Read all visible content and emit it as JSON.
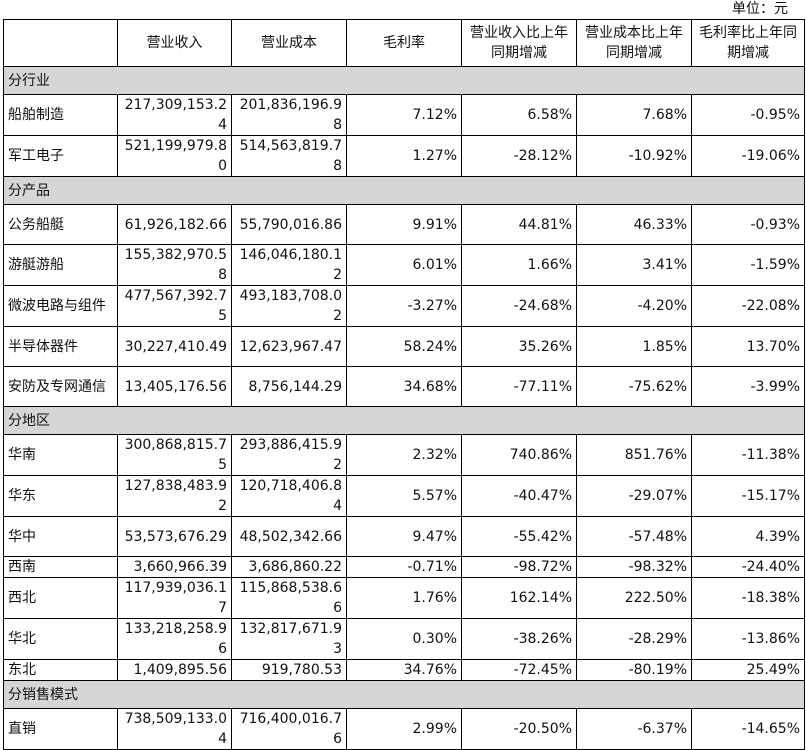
{
  "unit_label": "单位：元",
  "headers": [
    "",
    "营业收入",
    "营业成本",
    "毛利率",
    "营业收入比上年同期增减",
    "营业成本比上年同期增减",
    "毛利率比上年同期增减"
  ],
  "sections": [
    {
      "title": "分行业",
      "rows": [
        [
          "船舶制造",
          "217,309,153.24",
          "201,836,196.98",
          "7.12%",
          "6.58%",
          "7.68%",
          "-0.95%"
        ],
        [
          "军工电子",
          "521,199,979.80",
          "514,563,819.78",
          "1.27%",
          "-28.12%",
          "-10.92%",
          "-19.06%"
        ]
      ]
    },
    {
      "title": "分产品",
      "rows": [
        [
          "公务船艇",
          "61,926,182.66",
          "55,790,016.86",
          "9.91%",
          "44.81%",
          "46.33%",
          "-0.93%"
        ],
        [
          "游艇游船",
          "155,382,970.58",
          "146,046,180.12",
          "6.01%",
          "1.66%",
          "3.41%",
          "-1.59%"
        ],
        [
          "微波电路与组件",
          "477,567,392.75",
          "493,183,708.02",
          "-3.27%",
          "-24.68%",
          "-4.20%",
          "-22.08%"
        ],
        [
          "半导体器件",
          "30,227,410.49",
          "12,623,967.47",
          "58.24%",
          "35.26%",
          "1.85%",
          "13.70%"
        ],
        [
          "安防及专网通信",
          "13,405,176.56",
          "8,756,144.29",
          "34.68%",
          "-77.11%",
          "-75.62%",
          "-3.99%"
        ]
      ]
    },
    {
      "title": "分地区",
      "rows": [
        [
          "华南",
          "300,868,815.75",
          "293,886,415.92",
          "2.32%",
          "740.86%",
          "851.76%",
          "-11.38%"
        ],
        [
          "华东",
          "127,838,483.92",
          "120,718,406.84",
          "5.57%",
          "-40.47%",
          "-29.07%",
          "-15.17%"
        ],
        [
          "华中",
          "53,573,676.29",
          "48,502,342.66",
          "9.47%",
          "-55.42%",
          "-57.48%",
          "4.39%"
        ],
        [
          "西南",
          "3,660,966.39",
          "3,686,860.22",
          "-0.71%",
          "-98.72%",
          "-98.32%",
          "-24.40%"
        ],
        [
          "西北",
          "117,939,036.17",
          "115,868,538.66",
          "1.76%",
          "162.14%",
          "222.50%",
          "-18.38%"
        ],
        [
          "华北",
          "133,218,258.96",
          "132,817,671.93",
          "0.30%",
          "-38.26%",
          "-28.29%",
          "-13.86%"
        ],
        [
          "东北",
          "1,409,895.56",
          "919,780.53",
          "34.76%",
          "-72.45%",
          "-80.19%",
          "25.49%"
        ]
      ]
    },
    {
      "title": "分销售模式",
      "rows": [
        [
          "直销",
          "738,509,133.04",
          "716,400,016.76",
          "2.99%",
          "-20.50%",
          "-6.37%",
          "-14.65%"
        ]
      ]
    }
  ]
}
